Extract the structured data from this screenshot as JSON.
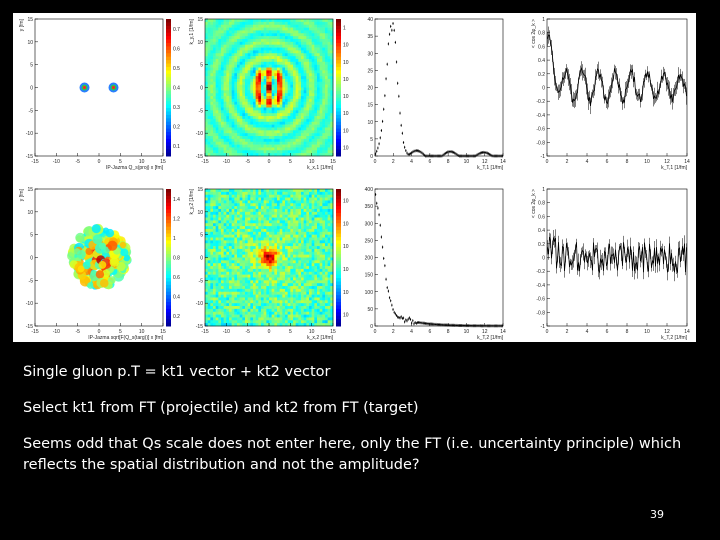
{
  "figure": {
    "rows": [
      {
        "panels": [
          {
            "kind": "density",
            "xlabel": "IP-Jazma Q_s(proj) x [fm]",
            "ylabel": "y [fm]",
            "xticks": [
              "-15",
              "-10",
              "-5",
              "0",
              "5",
              "10",
              "15"
            ],
            "yticks": [
              "15",
              "10",
              "5",
              "0",
              "-5",
              "-10",
              "-15"
            ],
            "zticks": [
              "0.7",
              "0.6",
              "0.5",
              "0.4",
              "0.3",
              "0.2",
              "0.1"
            ]
          },
          {
            "kind": "ft2d",
            "xlabel": "k_x,1 [1/fm]",
            "ylabel": "k_y,1 [1/fm]",
            "xticks": [
              "-15",
              "-10",
              "-5",
              "0",
              "5",
              "10",
              "15"
            ],
            "yticks": [
              "15",
              "10",
              "5",
              "0",
              "-5",
              "-10",
              "-15"
            ],
            "zticks": [
              "1",
              "10",
              "10",
              "10",
              "10",
              "10",
              "10",
              "10"
            ]
          },
          {
            "kind": "falloff",
            "xlabel": "k_T,1 [1/fm]",
            "ylabel": "",
            "xticks": [
              "0",
              "2",
              "4",
              "6",
              "8",
              "10",
              "12",
              "14"
            ],
            "yticks": [
              "40",
              "35",
              "30",
              "25",
              "20",
              "15",
              "10",
              "5",
              "0"
            ]
          },
          {
            "kind": "phase",
            "xlabel": "k_T,1 [1/fm]",
            "ylabel": "< cos 2φ_k >",
            "xticks": [
              "0",
              "2",
              "4",
              "6",
              "8",
              "10",
              "12",
              "14"
            ],
            "yticks": [
              "1",
              "0.8",
              "0.6",
              "0.4",
              "0.2",
              "0",
              "-0.2",
              "-0.4",
              "-0.6",
              "-0.8",
              "-1"
            ]
          }
        ]
      },
      {
        "panels": [
          {
            "kind": "density",
            "xlabel": "IP-Jazma sqrt[F(Q_s(targ))] x [fm]",
            "ylabel": "y [fm]",
            "xticks": [
              "-15",
              "-10",
              "-5",
              "0",
              "5",
              "10",
              "15"
            ],
            "yticks": [
              "15",
              "10",
              "5",
              "0",
              "-5",
              "-10",
              "-15"
            ],
            "zticks": [
              "1.4",
              "1.2",
              "1",
              "0.8",
              "0.6",
              "0.4",
              "0.2"
            ]
          },
          {
            "kind": "ft2d",
            "xlabel": "k_x,2 [1/fm]",
            "ylabel": "k_y,2 [1/fm]",
            "xticks": [
              "-15",
              "-10",
              "-5",
              "0",
              "5",
              "10",
              "15"
            ],
            "yticks": [
              "15",
              "10",
              "5",
              "0",
              "-5",
              "-10",
              "-15"
            ],
            "zticks": [
              "10",
              "10",
              "10",
              "10",
              "10",
              "10"
            ]
          },
          {
            "kind": "falloff",
            "xlabel": "k_T,2 [1/fm]",
            "ylabel": "",
            "xticks": [
              "0",
              "2",
              "4",
              "6",
              "8",
              "10",
              "12",
              "14"
            ],
            "yticks": [
              "400",
              "350",
              "300",
              "250",
              "200",
              "150",
              "100",
              "50",
              "0"
            ]
          },
          {
            "kind": "phase",
            "xlabel": "k_T,2 [1/fm]",
            "ylabel": "< cos 2φ_k >",
            "xticks": [
              "0",
              "2",
              "4",
              "6",
              "8",
              "10",
              "12",
              "14"
            ],
            "yticks": [
              "1",
              "0.8",
              "0.6",
              "0.4",
              "0.2",
              "0",
              "-0.2",
              "-0.4",
              "-0.6",
              "-0.8",
              "-1"
            ]
          }
        ]
      }
    ]
  },
  "text": {
    "line1": "Single gluon p.T = kt1 vector + kt2 vector",
    "line2": "Select kt1 from FT (projectile) and kt2 from FT (target)",
    "line3": "Seems odd that Qs scale does not enter here, only the FT (i.e. uncertainty principle) which reflects the spatial distribution and not the amplitude?"
  },
  "page_number": "39"
}
